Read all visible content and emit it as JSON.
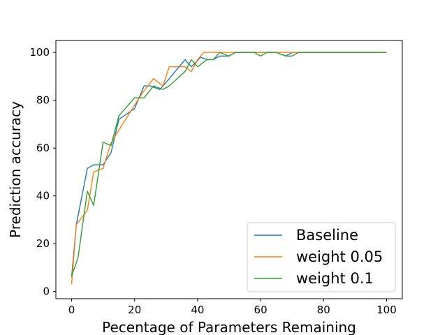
{
  "chart_data": {
    "type": "line",
    "title": "",
    "xlabel": "Pecentage of Parameters Remaining",
    "ylabel": "Prediction accuracy",
    "xlim": [
      -5,
      105
    ],
    "ylim": [
      -3,
      105
    ],
    "xticks": [
      0,
      20,
      40,
      60,
      80,
      100
    ],
    "yticks": [
      0,
      20,
      40,
      60,
      80,
      100
    ],
    "grid": false,
    "legend_position": "lower-right",
    "series": [
      {
        "name": "Baseline",
        "color": "#1f77b4",
        "x": [
          0,
          1.5,
          5,
          7,
          10,
          12.5,
          15,
          20,
          23,
          25,
          28,
          31,
          36,
          38,
          41,
          43,
          45,
          47,
          50,
          52,
          55,
          60,
          62,
          65,
          68,
          70,
          72,
          75,
          80,
          90,
          100
        ],
        "y": [
          6,
          28,
          51.5,
          53,
          53,
          58,
          72,
          76.5,
          86,
          86,
          84.5,
          89,
          97,
          94,
          98,
          97,
          97,
          98.5,
          98.5,
          100,
          100,
          100,
          100,
          100,
          98.5,
          100,
          100,
          100,
          100,
          100,
          100
        ]
      },
      {
        "name": "weight 0.05",
        "color": "#ff7f0e",
        "x": [
          0,
          1.5,
          5,
          7,
          10,
          12.5,
          15,
          20,
          23,
          26,
          29,
          31,
          33,
          36,
          38,
          40,
          42,
          45,
          47,
          50,
          52,
          55,
          60,
          65,
          70,
          75,
          80,
          90,
          100
        ],
        "y": [
          3,
          28,
          34,
          50,
          51.5,
          62,
          67.5,
          78,
          84,
          89,
          86,
          94,
          94,
          94,
          92,
          97,
          100,
          100,
          100,
          100,
          100,
          100,
          100,
          100,
          100,
          100,
          100,
          100,
          100
        ]
      },
      {
        "name": "weight 0.1",
        "color": "#2ca02c",
        "x": [
          0,
          2,
          5,
          7,
          10,
          12.5,
          15,
          20,
          23,
          26,
          29,
          31,
          36,
          38,
          40,
          43,
          45,
          47,
          50,
          52,
          55,
          58,
          60,
          62,
          65,
          68,
          70,
          72,
          75,
          80,
          90,
          100
        ],
        "y": [
          6.5,
          14,
          42,
          36,
          62.5,
          61,
          73.5,
          81,
          81,
          86,
          84.5,
          86,
          92,
          97,
          94,
          97,
          97,
          100,
          98.5,
          100,
          100,
          100,
          98.5,
          100,
          100,
          98.5,
          98.5,
          100,
          100,
          100,
          100,
          100
        ]
      }
    ]
  }
}
